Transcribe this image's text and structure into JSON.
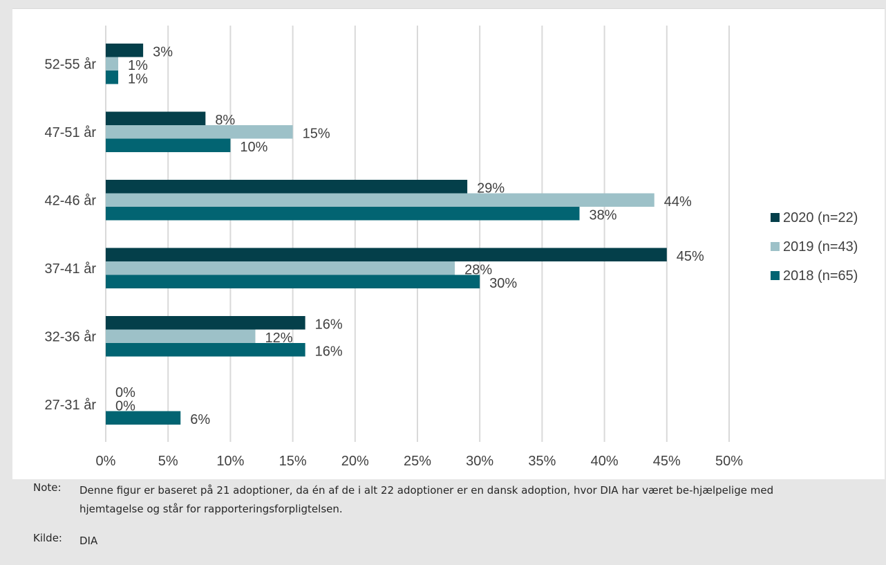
{
  "chart_data": {
    "type": "bar",
    "orientation": "horizontal",
    "categories": [
      "52-55 år",
      "47-51 år",
      "42-46 år",
      "37-41 år",
      "32-36 år",
      "27-31 år"
    ],
    "series": [
      {
        "name": "2020 (n=22)",
        "values": [
          3,
          8,
          29,
          45,
          16,
          0
        ],
        "labels": [
          "3%",
          "8%",
          "29%",
          "45%",
          "16%",
          "0%"
        ]
      },
      {
        "name": "2019 (n=43)",
        "values": [
          1,
          15,
          44,
          28,
          12,
          0
        ],
        "labels": [
          "1%",
          "15%",
          "44%",
          "28%",
          "12%",
          "0%"
        ]
      },
      {
        "name": "2018 (n=65)",
        "values": [
          1,
          10,
          38,
          30,
          16,
          6
        ],
        "labels": [
          "1%",
          "10%",
          "38%",
          "30%",
          "16%",
          "6%"
        ]
      }
    ],
    "xlim": [
      0,
      50
    ],
    "x_ticks": [
      "0%",
      "5%",
      "10%",
      "15%",
      "20%",
      "25%",
      "30%",
      "35%",
      "40%",
      "45%",
      "50%"
    ],
    "grid": "vertical",
    "legend_position": "right",
    "title": "",
    "xlabel": "",
    "ylabel": ""
  },
  "colors": {
    "2020": "#043f4a",
    "2019": "#9dc1c8",
    "2018": "#026472",
    "grid": "#d9d9d9"
  },
  "note": {
    "label": "Note:",
    "text": "Denne figur er baseret på 21 adoptioner, da én af de i alt 22 adoptioner er en dansk adoption, hvor DIA har været be-hjælpelige med hjemtagelse og står for rapporteringsforpligtelsen."
  },
  "source": {
    "label": "Kilde:",
    "text": "DIA"
  }
}
